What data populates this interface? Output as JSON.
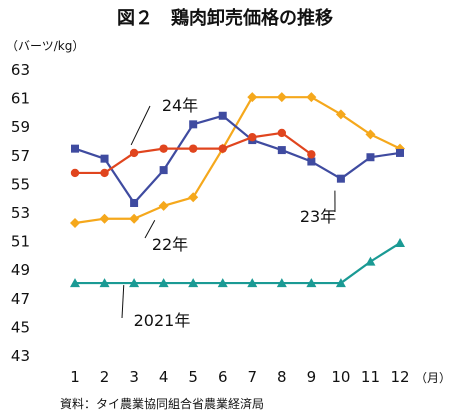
{
  "chart_data": {
    "type": "line",
    "title": "図２　鶏肉卸売価格の推移",
    "ylabel": "（バーツ/kg）",
    "xlabel": "（月）",
    "source": "資料：タイ農業協同組合省農業経済局",
    "x": [
      "1",
      "2",
      "3",
      "4",
      "5",
      "6",
      "7",
      "8",
      "9",
      "10",
      "11",
      "12"
    ],
    "ylim": [
      43,
      63
    ],
    "yticks": [
      43,
      45,
      47,
      49,
      51,
      53,
      55,
      57,
      59,
      61,
      63
    ],
    "grid": false,
    "series": [
      {
        "name": "2021年",
        "color": "#1a9a94",
        "marker": "triangle",
        "values": [
          48.1,
          48.1,
          48.1,
          48.1,
          48.1,
          48.1,
          48.1,
          48.1,
          48.1,
          48.1,
          49.6,
          50.9
        ]
      },
      {
        "name": "22年",
        "color": "#f5a81c",
        "marker": "diamond",
        "values": [
          52.3,
          52.6,
          52.6,
          53.5,
          54.1,
          57.5,
          61.1,
          61.1,
          61.1,
          59.9,
          58.5,
          57.5
        ]
      },
      {
        "name": "23年",
        "color": "#3f4ba0",
        "marker": "square",
        "values": [
          57.5,
          56.8,
          53.7,
          56.0,
          59.2,
          59.8,
          58.1,
          57.4,
          56.6,
          55.4,
          56.9,
          57.2
        ]
      },
      {
        "name": "24年",
        "color": "#e0451e",
        "marker": "circle",
        "values": [
          55.8,
          55.8,
          57.2,
          57.5,
          57.5,
          57.5,
          58.3,
          58.6,
          57.1,
          null,
          null,
          null
        ]
      }
    ],
    "annotations": [
      {
        "text": "24年",
        "series": "24年"
      },
      {
        "text": "22年",
        "series": "22年"
      },
      {
        "text": "23年",
        "series": "23年"
      },
      {
        "text": "2021年",
        "series": "2021年"
      }
    ]
  }
}
